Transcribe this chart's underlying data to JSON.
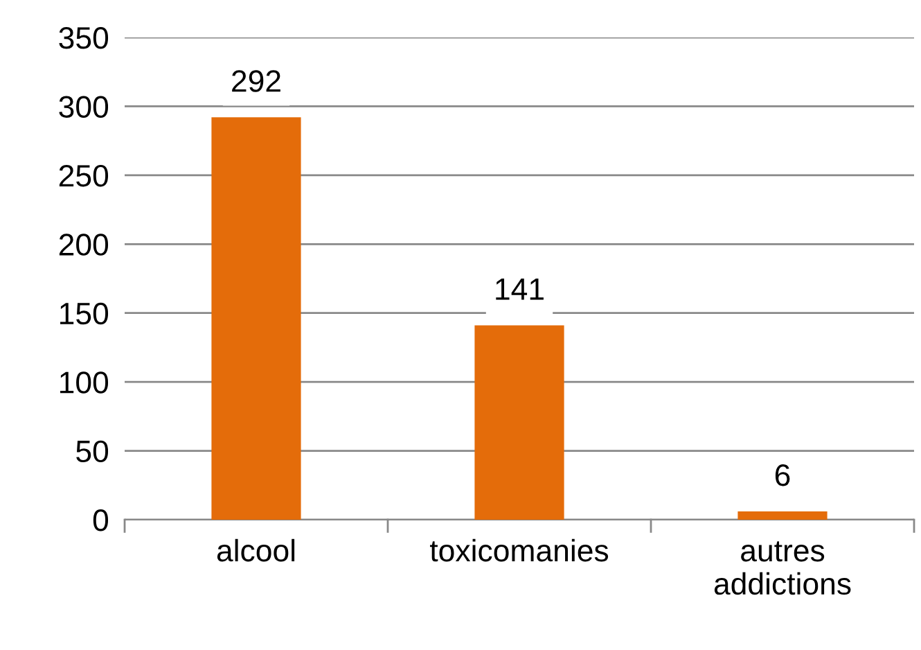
{
  "chart_data": {
    "type": "bar",
    "categories": [
      "alcool",
      "toxicomanies",
      "autres\naddictions"
    ],
    "values": [
      292,
      141,
      6
    ],
    "color": "#e46c0a",
    "ylim": [
      0,
      350
    ],
    "yticks": [
      0,
      50,
      100,
      150,
      200,
      250,
      300,
      350
    ],
    "grid": "y",
    "data_labels": true
  }
}
